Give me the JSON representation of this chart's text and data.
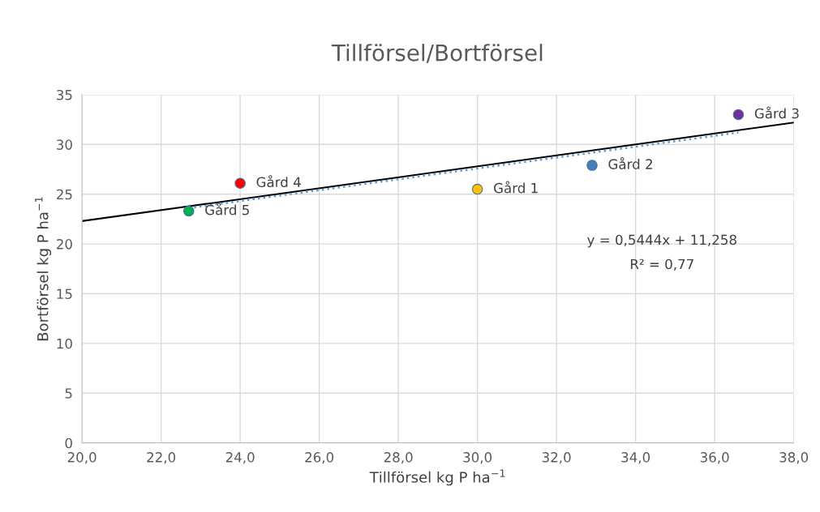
{
  "chart_data": {
    "type": "scatter",
    "title": "Tillförsel/Bortförsel",
    "xlabel": "Tillförsel kg P ha$^{−1}$",
    "ylabel": "Bortförsel kg P ha$^{−1}$",
    "series": [
      {
        "type": "line",
        "marker": "none",
        "color": "#000000",
        "line_style": "solid",
        "x": [
          20.0,
          38.0
        ],
        "values": [
          22.3,
          32.2
        ]
      },
      {
        "type": "line",
        "marker": "none",
        "color": "#5b9bd5",
        "line_style": "dotted",
        "x": [
          22.7,
          36.6
        ],
        "values": [
          23.6,
          31.2
        ]
      },
      {
        "name": "Gård 1",
        "color": "#ffc000",
        "x": [
          30.0
        ],
        "values": [
          25.5
        ]
      },
      {
        "name": "Gård 2",
        "color": "#4a7ebb",
        "x": [
          32.9
        ],
        "values": [
          27.9
        ]
      },
      {
        "name": "Gård 3",
        "color": "#7030a0",
        "x": [
          36.6
        ],
        "values": [
          33.0
        ]
      },
      {
        "name": "Gård 4",
        "color": "#ff0000",
        "x": [
          24.0
        ],
        "values": [
          26.1
        ]
      },
      {
        "name": "Gård 5",
        "color": "#00b050",
        "x": [
          22.7
        ],
        "values": [
          23.3
        ]
      }
    ],
    "marker": "circle",
    "annotations": [
      "y = 0,5444x + 11,258",
      "R² = 0,77"
    ],
    "xlim": [
      20.0,
      38.0
    ],
    "xticks": [
      {
        "value": 20,
        "label": "20,0"
      },
      {
        "value": 22,
        "label": "22,0"
      },
      {
        "value": 24,
        "label": "24,0"
      },
      {
        "value": 26,
        "label": "26,0"
      },
      {
        "value": 28,
        "label": "28,0"
      },
      {
        "value": 30,
        "label": "30,0"
      },
      {
        "value": 32,
        "label": "32,0"
      },
      {
        "value": 34,
        "label": "34,0"
      },
      {
        "value": 36,
        "label": "36,0"
      },
      {
        "value": 38,
        "label": "38,0"
      }
    ],
    "ylim": [
      0,
      35
    ],
    "yticks": [
      0,
      5,
      10,
      15,
      20,
      25,
      30,
      35
    ],
    "grid": true
  }
}
